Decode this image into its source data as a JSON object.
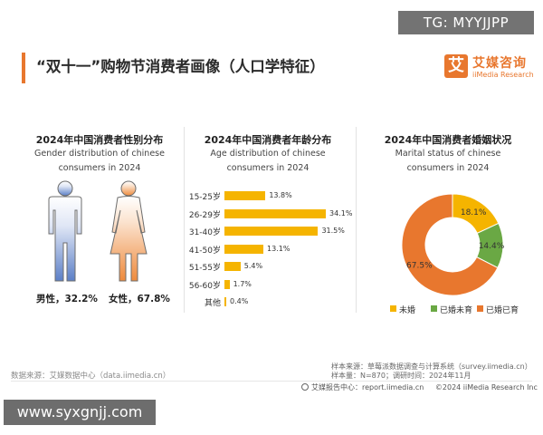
{
  "watermark": {
    "text": "TG: MYYJJPP"
  },
  "header": {
    "title": "“双十一”购物节消费者画像（人口学特征）",
    "logo_char": "艾",
    "logo_cn": "艾媒咨询",
    "logo_en": "iiMedia Research"
  },
  "colors": {
    "accent_orange": "#e8772e",
    "yellow": "#f5b400",
    "green": "#6aa844",
    "male_blue": "#5b7fc7",
    "female_orange": "#ee8a3c"
  },
  "gender": {
    "title": "2024年中国消费者性别分布",
    "subtitle": "Gender distribution of chinese consumers in 2024",
    "male_label": "男性，32.2%",
    "female_label": "女性，67.8%",
    "icons": [
      "male-figure-icon",
      "female-figure-icon"
    ]
  },
  "age": {
    "title": "2024年中国消费者年龄分布",
    "subtitle": "Age distribution of chinese consumers in 2024"
  },
  "marital": {
    "title": "2024年中国消费者婚姻状况",
    "subtitle": "Marital status of chinese consumers in 2024"
  },
  "chart_data": [
    {
      "type": "bar",
      "title": "2024年中国消费者性别分布",
      "categories": [
        "男性",
        "女性"
      ],
      "values": [
        32.2,
        67.8
      ],
      "unit": "%"
    },
    {
      "type": "bar",
      "orientation": "horizontal",
      "title": "2024年中国消费者年龄分布",
      "categories": [
        "15-25岁",
        "26-29岁",
        "31-40岁",
        "41-50岁",
        "51-55岁",
        "56-60岁",
        "其他"
      ],
      "values": [
        13.8,
        34.1,
        31.5,
        13.1,
        5.4,
        1.7,
        0.4
      ],
      "labels": [
        "13.8%",
        "34.1%",
        "31.5%",
        "13.1%",
        "5.4%",
        "1.7%",
        "0.4%"
      ],
      "color": "#f5b400"
    },
    {
      "type": "pie",
      "donut": true,
      "title": "2024年中国消费者婚姻状况",
      "categories": [
        "未婚",
        "已婚未育",
        "已婚已育"
      ],
      "values": [
        18.1,
        14.4,
        67.5
      ],
      "labels": [
        "18.1%",
        "14.4%",
        "67.5%"
      ],
      "colors": [
        "#f5b400",
        "#6aa844",
        "#e8772e"
      ],
      "legend": "bottom"
    }
  ],
  "footer": {
    "source_left": "数据来源：艾媒数据中心（data.iimedia.cn）",
    "sample_source": "样本来源：草莓派数据调查与计算系统（survey.iimedia.cn）",
    "sample_size": "样本量：N=870；调研时间：2024年11月",
    "report_center": "艾媒报告中心：report.iimedia.cn",
    "copyright": "©2024  iiMedia Research  Inc"
  },
  "site_watermark": "www.syxgnjj.com"
}
